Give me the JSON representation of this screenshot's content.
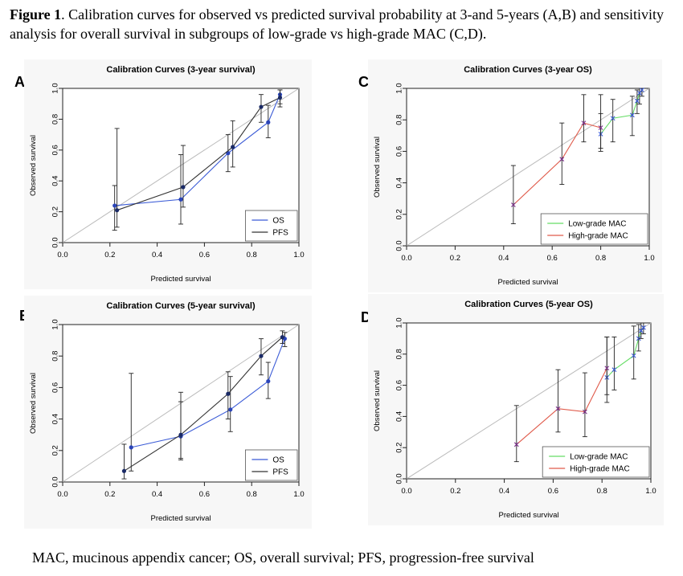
{
  "caption": {
    "fig_label": "Figure 1",
    "text": ". Calibration curves for observed vs predicted survival probability at 3-and 5-years (A,B) and sensitivity analysis for overall survival in subgroups of low-grade vs high-grade MAC (C,D)."
  },
  "footnote": "MAC, mucinous appendix cancer; OS, overall survival; PFS, progression-free survival",
  "colors": {
    "os": "#3b5bd6",
    "pfs": "#333333",
    "low": "#66dd66",
    "high": "#e05a4a",
    "diag": "#bbbbbb"
  },
  "chart_data": [
    {
      "panel": "A",
      "type": "line",
      "title": "Calibration Curves (3-year survival)",
      "xlabel": "Predicted survival",
      "ylabel": "Observed survival",
      "xlim": [
        0,
        1
      ],
      "ylim": [
        0,
        1
      ],
      "xticks": [
        "0.0",
        "0.2",
        "0.4",
        "0.6",
        "0.8",
        "1.0"
      ],
      "yticks": [
        "0.0",
        "0.2",
        "0.4",
        "0.6",
        "0.8",
        "1.0"
      ],
      "legend_position": "bottom-right",
      "series": [
        {
          "name": "OS",
          "color": "#3b5bd6",
          "marker": "dot",
          "x": [
            0.22,
            0.5,
            0.7,
            0.87,
            0.92
          ],
          "y": [
            0.24,
            0.28,
            0.58,
            0.78,
            0.96
          ],
          "lo": [
            0.08,
            0.12,
            0.46,
            0.68,
            0.9
          ],
          "hi": [
            0.37,
            0.57,
            0.7,
            0.89,
            0.99
          ]
        },
        {
          "name": "PFS",
          "color": "#333333",
          "marker": "dot",
          "x": [
            0.23,
            0.51,
            0.72,
            0.84,
            0.92
          ],
          "y": [
            0.21,
            0.36,
            0.62,
            0.88,
            0.94
          ],
          "lo": [
            0.1,
            0.23,
            0.49,
            0.78,
            0.88
          ],
          "hi": [
            0.74,
            0.63,
            0.79,
            0.96,
            0.99
          ]
        }
      ]
    },
    {
      "panel": "B",
      "type": "line",
      "title": "Calibration Curves (5-year survival)",
      "xlabel": "Predicted survival",
      "ylabel": "Observed survival",
      "xlim": [
        0,
        1
      ],
      "ylim": [
        0,
        1
      ],
      "xticks": [
        "0.0",
        "0.2",
        "0.4",
        "0.6",
        "0.8",
        "1.0"
      ],
      "yticks": [
        "0.0",
        "0.2",
        "0.4",
        "0.6",
        "0.8",
        "1.0"
      ],
      "legend_position": "bottom-right",
      "series": [
        {
          "name": "OS",
          "color": "#3b5bd6",
          "marker": "dot",
          "x": [
            0.29,
            0.5,
            0.71,
            0.87,
            0.94
          ],
          "y": [
            0.22,
            0.29,
            0.46,
            0.64,
            0.91
          ],
          "lo": [
            0.07,
            0.15,
            0.32,
            0.53,
            0.86
          ],
          "hi": [
            0.69,
            0.51,
            0.67,
            0.76,
            0.95
          ]
        },
        {
          "name": "PFS",
          "color": "#333333",
          "marker": "dot",
          "x": [
            0.26,
            0.5,
            0.7,
            0.84,
            0.93
          ],
          "y": [
            0.07,
            0.3,
            0.56,
            0.8,
            0.92
          ],
          "lo": [
            0.02,
            0.14,
            0.4,
            0.68,
            0.88
          ],
          "hi": [
            0.24,
            0.57,
            0.7,
            0.91,
            0.96
          ]
        }
      ]
    },
    {
      "panel": "C",
      "type": "line",
      "title": "Calibration Curves (3-year OS)",
      "xlabel": "Predicted survival",
      "ylabel": "Observed survival",
      "xlim": [
        0,
        1
      ],
      "ylim": [
        0,
        1
      ],
      "xticks": [
        "0.0",
        "0.2",
        "0.4",
        "0.6",
        "0.8",
        "1.0"
      ],
      "yticks": [
        "0.0",
        "0.2",
        "0.4",
        "0.6",
        "0.8",
        "1.0"
      ],
      "legend_position": "bottom-right",
      "series": [
        {
          "name": "Low-grade MAC",
          "color": "#66dd66",
          "marker": "x",
          "x": [
            0.8,
            0.85,
            0.93,
            0.95,
            0.96,
            0.97
          ],
          "y": [
            0.71,
            0.81,
            0.83,
            0.92,
            0.97,
            0.99
          ],
          "lo": [
            0.6,
            0.66,
            0.7,
            0.84,
            0.9,
            0.95
          ],
          "hi": [
            0.84,
            0.93,
            0.95,
            0.99,
            1.0,
            1.0
          ]
        },
        {
          "name": "High-grade MAC",
          "color": "#e05a4a",
          "marker": "x",
          "x": [
            0.44,
            0.64,
            0.73,
            0.8
          ],
          "y": [
            0.26,
            0.55,
            0.78,
            0.75
          ],
          "lo": [
            0.14,
            0.39,
            0.66,
            0.62
          ],
          "hi": [
            0.51,
            0.78,
            0.96,
            0.96
          ]
        }
      ]
    },
    {
      "panel": "D",
      "type": "line",
      "title": "Calibration Curves (5-year OS)",
      "xlabel": "Predicted survival",
      "ylabel": "Observed survival",
      "xlim": [
        0,
        1
      ],
      "ylim": [
        0,
        1
      ],
      "xticks": [
        "0.0",
        "0.2",
        "0.4",
        "0.6",
        "0.8",
        "1.0"
      ],
      "yticks": [
        "0.0",
        "0.2",
        "0.4",
        "0.6",
        "0.8",
        "1.0"
      ],
      "legend_position": "bottom-right",
      "series": [
        {
          "name": "Low-grade MAC",
          "color": "#66dd66",
          "marker": "x",
          "x": [
            0.82,
            0.85,
            0.93,
            0.95,
            0.96,
            0.97
          ],
          "y": [
            0.65,
            0.7,
            0.79,
            0.9,
            0.95,
            0.97
          ],
          "lo": [
            0.49,
            0.57,
            0.64,
            0.82,
            0.9,
            0.93
          ],
          "hi": [
            0.91,
            0.91,
            0.98,
            0.99,
            1.0,
            1.0
          ]
        },
        {
          "name": "High-grade MAC",
          "color": "#e05a4a",
          "marker": "x",
          "x": [
            0.45,
            0.62,
            0.73,
            0.82
          ],
          "y": [
            0.22,
            0.45,
            0.43,
            0.71
          ],
          "lo": [
            0.11,
            0.3,
            0.27,
            0.54
          ],
          "hi": [
            0.47,
            0.7,
            0.68,
            0.91
          ]
        }
      ]
    }
  ]
}
